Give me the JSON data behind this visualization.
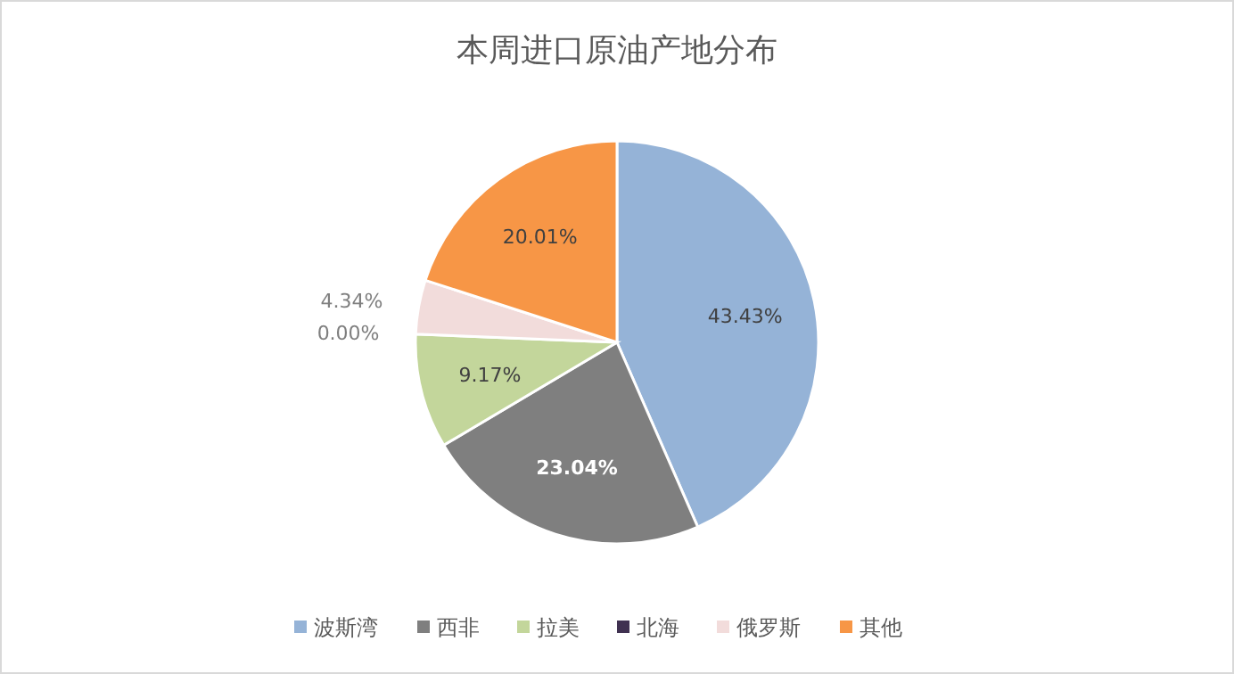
{
  "chart_data": {
    "type": "pie",
    "title": "本周进口原油产地分布",
    "categories": [
      "波斯湾",
      "西非",
      "拉美",
      "北海",
      "俄罗斯",
      "其他"
    ],
    "values": [
      43.43,
      23.04,
      9.17,
      0.0,
      4.34,
      20.01
    ],
    "colors": [
      "#95b3d7",
      "#7f7f7f",
      "#c3d69b",
      "#403151",
      "#f2dcdb",
      "#f79646"
    ],
    "value_labels": [
      "43.43%",
      "23.04%",
      "9.17%",
      "0.00%",
      "4.34%",
      "20.01%"
    ],
    "legend": "bottom"
  }
}
